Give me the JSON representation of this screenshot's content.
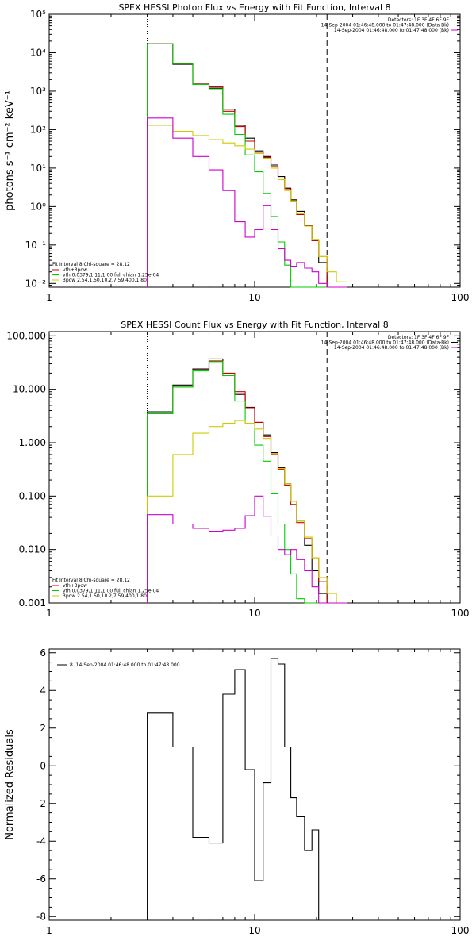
{
  "chart_data": [
    {
      "type": "line",
      "title": "SPEX HESSI Photon Flux vs Energy with Fit Function, Interval 8",
      "ylabel": "photons s⁻¹ cm⁻² keV⁻¹",
      "xlabel": "",
      "xscale": "log",
      "yscale": "log",
      "xlim": [
        1,
        100
      ],
      "ylim": [
        0.008,
        100000
      ],
      "xticks": [
        1,
        10,
        100
      ],
      "xtick_labels": [
        "1",
        "10",
        "100"
      ],
      "yticks": [
        0.01,
        0.1,
        1,
        10,
        100,
        1000,
        10000,
        100000
      ],
      "ytick_labels": [
        "10⁻²",
        "10⁻¹",
        "10⁰",
        "10¹",
        "10²",
        "10³",
        "10⁴",
        "10⁵"
      ],
      "vlines": [
        {
          "x": 3.0,
          "style": "dotted"
        },
        {
          "x": 22.5,
          "style": "dashed"
        }
      ],
      "info_lines": [
        "Detectors: 1F 3F 4F 6F 9F",
        "14-Sep-2004 01:46:48.000 to 01:47:48.000 (Data-Bk)",
        "14-Sep-2004 01:46:48.000 to 01:47:48.000 (Bk)"
      ],
      "legend_title": "Fit Interval  8    Chi-square = 28.12",
      "legend": [
        {
          "label": "vth+3pow",
          "color": "#cc0000"
        },
        {
          "label": "vth 0.0379,1.11,1.00  full chian 1.25e-04",
          "color": "#00cc00"
        },
        {
          "label": "3pow 2.54,1.50,10.2,7.59,400,1.80",
          "color": "#cccc00"
        }
      ],
      "edges": [
        3.0,
        4.0,
        5.0,
        6.0,
        7.0,
        8.0,
        9.0,
        10.0,
        11.0,
        12.0,
        13.0,
        14.0,
        15.0,
        16.0,
        17.5,
        19.0,
        20.5,
        22.5,
        25.0,
        28.0
      ],
      "series": [
        {
          "name": "Data-Bk",
          "color": "#000000",
          "values": [
            17000,
            5000,
            1500,
            1200,
            340,
            130,
            60,
            28,
            20,
            12,
            6,
            3,
            1.5,
            0.75,
            0.32,
            0.13,
            0.035,
            0.008,
            0.008
          ]
        },
        {
          "name": "vth+3pow",
          "color": "#cc0000",
          "values": [
            17000,
            5200,
            1600,
            1300,
            300,
            120,
            50,
            26,
            19,
            11,
            5.5,
            2.9,
            1.4,
            0.62,
            0.33,
            0.13,
            0.05,
            0.008,
            0.008
          ]
        },
        {
          "name": "vth",
          "color": "#00cc00",
          "values": [
            17000,
            5200,
            1500,
            1150,
            250,
            75,
            22,
            8,
            2.2,
            0.55,
            0.12,
            0.03,
            0.008,
            0.008,
            0.008,
            0.008,
            0.008,
            0.008,
            0.008
          ]
        },
        {
          "name": "3pow",
          "color": "#cccc00",
          "values": [
            130,
            90,
            70,
            55,
            45,
            38,
            31,
            24,
            18,
            10,
            5,
            2.6,
            1.4,
            0.65,
            0.31,
            0.14,
            0.05,
            0.02,
            0.011
          ]
        },
        {
          "name": "Bk",
          "color": "#cc00cc",
          "values": [
            200,
            60,
            20,
            9,
            2.6,
            0.4,
            0.16,
            0.25,
            1.05,
            0.25,
            0.08,
            0.04,
            0.028,
            0.035,
            0.025,
            0.02,
            0.01,
            0.008,
            0.008
          ]
        }
      ]
    },
    {
      "type": "line",
      "title": "SPEX HESSI Count Flux vs Energy with Fit Function, Interval 8",
      "ylabel": "",
      "xlabel": "",
      "xscale": "log",
      "yscale": "log",
      "xlim": [
        1,
        100
      ],
      "ylim": [
        0.001,
        120
      ],
      "xticks": [
        1,
        10,
        100
      ],
      "xtick_labels": [
        "1",
        "10",
        "100"
      ],
      "yticks": [
        0.001,
        0.01,
        0.1,
        1,
        10,
        100
      ],
      "ytick_labels": [
        "0.001",
        "0.010",
        "0.100",
        "1.000",
        "10.000",
        "100.000"
      ],
      "vlines": [
        {
          "x": 3.0,
          "style": "dotted"
        },
        {
          "x": 22.5,
          "style": "dashed"
        }
      ],
      "info_lines": [
        "Detectors: 1F 3F 4F 6F 9F",
        "14-Sep-2004 01:46:48.000 to 01:47:48.000 (Data-Bk)",
        "14-Sep-2004 01:46:48.000 to 01:47:48.000 (Bk)"
      ],
      "legend_title": "Fit Interval  8    Chi-square = 28.12",
      "legend": [
        {
          "label": "vth+3pow",
          "color": "#cc0000"
        },
        {
          "label": "vth 0.0379,1.11,1.00  full chian 1.25e-04",
          "color": "#00cc00"
        },
        {
          "label": "3pow 2.54,1.50,10.2,7.59,400,1.80",
          "color": "#cccc00"
        }
      ],
      "edges": [
        3.0,
        4.0,
        5.0,
        6.0,
        7.0,
        8.0,
        9.0,
        10.0,
        11.0,
        12.0,
        13.0,
        14.0,
        15.0,
        16.0,
        17.5,
        19.0,
        20.5,
        22.5,
        25.0,
        28.0
      ],
      "series": [
        {
          "name": "Data-Bk",
          "color": "#000000",
          "values": [
            3.8,
            12,
            24,
            37,
            18,
            8,
            4.6,
            2.4,
            1.4,
            0.65,
            0.34,
            0.17,
            0.08,
            0.034,
            0.012,
            0.004,
            0.0015,
            0.001,
            0.001
          ]
        },
        {
          "name": "vth+3pow",
          "color": "#cc0000",
          "values": [
            3.6,
            11,
            23,
            34,
            20,
            9,
            4.5,
            2.4,
            1.3,
            0.6,
            0.32,
            0.16,
            0.07,
            0.032,
            0.016,
            0.007,
            0.0025,
            0.001,
            0.001
          ]
        },
        {
          "name": "vth",
          "color": "#00cc00",
          "values": [
            3.5,
            11,
            22,
            33,
            18,
            6,
            2.3,
            0.9,
            0.45,
            0.11,
            0.03,
            0.01,
            0.0035,
            0.0012,
            0.001,
            0.001,
            0.001,
            0.001,
            0.001
          ]
        },
        {
          "name": "3pow",
          "color": "#cccc00",
          "values": [
            0.1,
            0.6,
            1.5,
            2.0,
            2.3,
            2.6,
            2.3,
            1.8,
            1.2,
            0.63,
            0.33,
            0.17,
            0.08,
            0.034,
            0.017,
            0.007,
            0.003,
            0.0015,
            0.001
          ]
        },
        {
          "name": "Bk",
          "color": "#cc00cc",
          "values": [
            0.045,
            0.03,
            0.025,
            0.022,
            0.023,
            0.025,
            0.043,
            0.1,
            0.042,
            0.018,
            0.01,
            0.008,
            0.01,
            0.0065,
            0.004,
            0.002,
            0.001,
            0.001,
            0.001
          ]
        }
      ]
    },
    {
      "type": "line",
      "title": "",
      "ylabel": "Normalized Residuals",
      "xlabel": "",
      "xscale": "log",
      "yscale": "linear",
      "xlim": [
        1,
        100
      ],
      "ylim": [
        -8.2,
        6.2
      ],
      "xticks": [
        1,
        10,
        100
      ],
      "xtick_labels": [
        "1",
        "10",
        "100"
      ],
      "yticks": [
        -8,
        -6,
        -4,
        -2,
        0,
        2,
        4,
        6
      ],
      "ytick_labels": [
        "-8",
        "-6",
        "-4",
        "-2",
        "0",
        "2",
        "4",
        "6"
      ],
      "legend": [
        {
          "label": "8. 14-Sep-2004 01:46:48.000 to 01:47:48.000",
          "color": "#000000"
        }
      ],
      "edges": [
        3.0,
        4.0,
        5.0,
        6.0,
        7.0,
        8.0,
        9.0,
        10.0,
        11.0,
        12.0,
        13.0,
        14.0,
        15.0,
        16.0,
        17.5,
        19.0,
        20.5,
        22.5
      ],
      "series": [
        {
          "name": "8",
          "color": "#000000",
          "values": [
            2.8,
            1.0,
            -3.8,
            -4.1,
            3.8,
            5.1,
            -0.2,
            -6.1,
            -0.9,
            5.7,
            5.4,
            1.0,
            -1.7,
            -2.7,
            -4.5,
            -3.4,
            -8.2
          ]
        }
      ]
    }
  ]
}
